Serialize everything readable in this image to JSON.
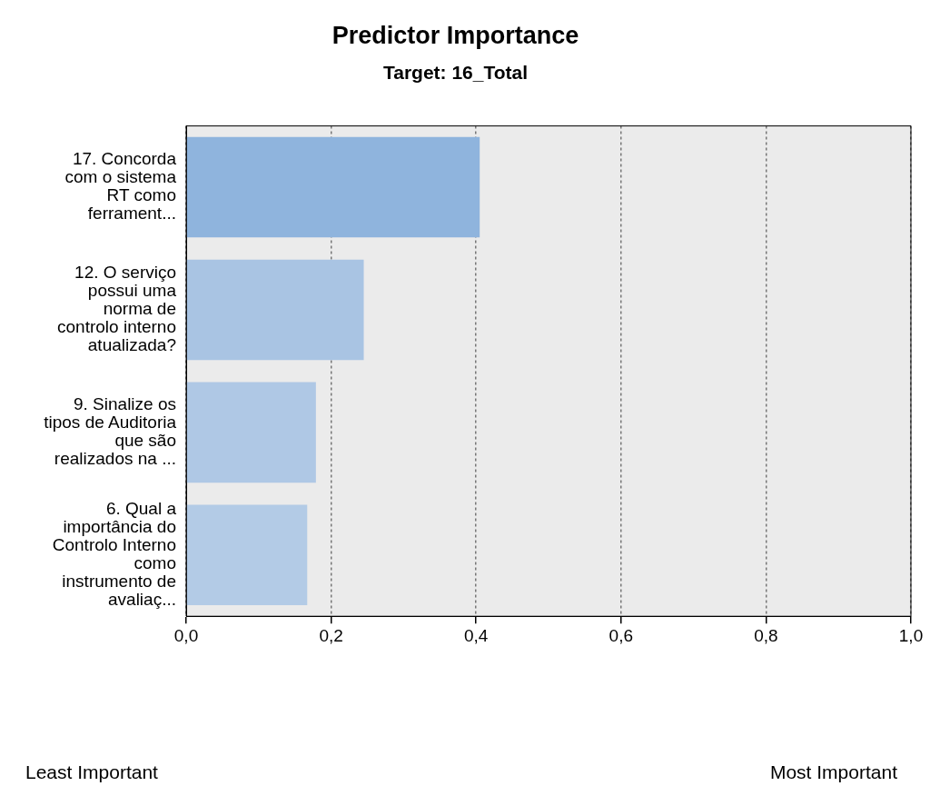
{
  "chart_data": {
    "type": "bar",
    "orientation": "horizontal",
    "title": "Predictor Importance",
    "subtitle": "Target: 16_Total",
    "categories": [
      "17. Concorda com o sistema RT como ferrament...",
      "12. O serviço possui uma norma de controlo interno atualizada?",
      "9. Sinalize os tipos de Auditoria que são realizados na ...",
      "6. Qual a importância do Controlo Interno como instrumento de avaliaç..."
    ],
    "values": [
      0.405,
      0.245,
      0.179,
      0.167
    ],
    "colors": [
      "#8fb4dd",
      "#a9c4e3",
      "#afc8e5",
      "#b3cbe6"
    ],
    "xlim": [
      0,
      1
    ],
    "xticks": [
      {
        "value": 0,
        "label": "0,0"
      },
      {
        "value": 0.2,
        "label": "0,2"
      },
      {
        "value": 0.4,
        "label": "0,4"
      },
      {
        "value": 0.6,
        "label": "0,6"
      },
      {
        "value": 0.8,
        "label": "0,8"
      },
      {
        "value": 1,
        "label": "1,0"
      }
    ],
    "grid": "x",
    "line_style": "dotted",
    "legend": false,
    "annotations": [
      "Least Important",
      "Most Important"
    ]
  }
}
